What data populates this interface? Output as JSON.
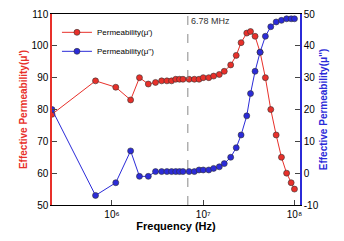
{
  "chart_data": {
    "type": "scatter",
    "x_label": "Frequency (Hz)",
    "y_label": "Effective Permeability(μ')",
    "y2_label": "Effective Permeability(μ'')",
    "log": "x",
    "grid": false,
    "legend": "upper left",
    "marker": "circle",
    "x": [
      220000,
      660000,
      1100000,
      1600000,
      2000000,
      2500000,
      3000000,
      3500000,
      4000000,
      4500000,
      5000000,
      5500000,
      6000000,
      7000000,
      8000000,
      9000000,
      10000000,
      11500000,
      13000000,
      15000000,
      17000000,
      20000000,
      23000000,
      26000000,
      30000000,
      33000000,
      37000000,
      42000000,
      48000000,
      55000000,
      63000000,
      72000000,
      82000000,
      92000000,
      100000000
    ],
    "series": [
      {
        "name": "Permeability(μ')",
        "color": "#e8302a",
        "values": [
          78.5,
          89,
          87,
          83,
          90,
          88,
          88.5,
          89,
          89,
          89,
          89.5,
          89.5,
          89.5,
          89.5,
          89.5,
          89.5,
          90,
          90,
          90.5,
          91,
          92,
          94,
          97,
          101,
          104,
          104.5,
          103,
          98,
          90,
          80,
          72,
          65,
          60,
          57,
          55
        ]
      },
      {
        "name": "Permeability(μ'')",
        "color": "#2b2bd8",
        "axis": "y2",
        "values": [
          20,
          -7,
          -3,
          7,
          -1,
          -1,
          0.5,
          0.5,
          0.5,
          0.5,
          0.5,
          0.5,
          0.5,
          0.5,
          0.5,
          1,
          1,
          1,
          1.5,
          2,
          3,
          5,
          8,
          12,
          18,
          25,
          32,
          38,
          43,
          46,
          47.5,
          48,
          48.5,
          48.5,
          48.5
        ]
      }
    ],
    "xlim": [
      220000,
      115000000
    ],
    "xticks": [
      {
        "value": 1000000,
        "label": "10⁶"
      },
      {
        "value": 10000000,
        "label": "10⁷"
      },
      {
        "value": 100000000,
        "label": "10⁸"
      }
    ],
    "ylim": [
      50,
      110
    ],
    "yticks": [
      50,
      60,
      70,
      80,
      90,
      100,
      110
    ],
    "y2lim": [
      -10,
      50
    ],
    "y2ticks": [
      -10,
      0,
      10,
      20,
      30,
      40,
      50
    ],
    "annotations": [
      {
        "text": "6.78 MHz",
        "x": 6780000
      }
    ]
  }
}
